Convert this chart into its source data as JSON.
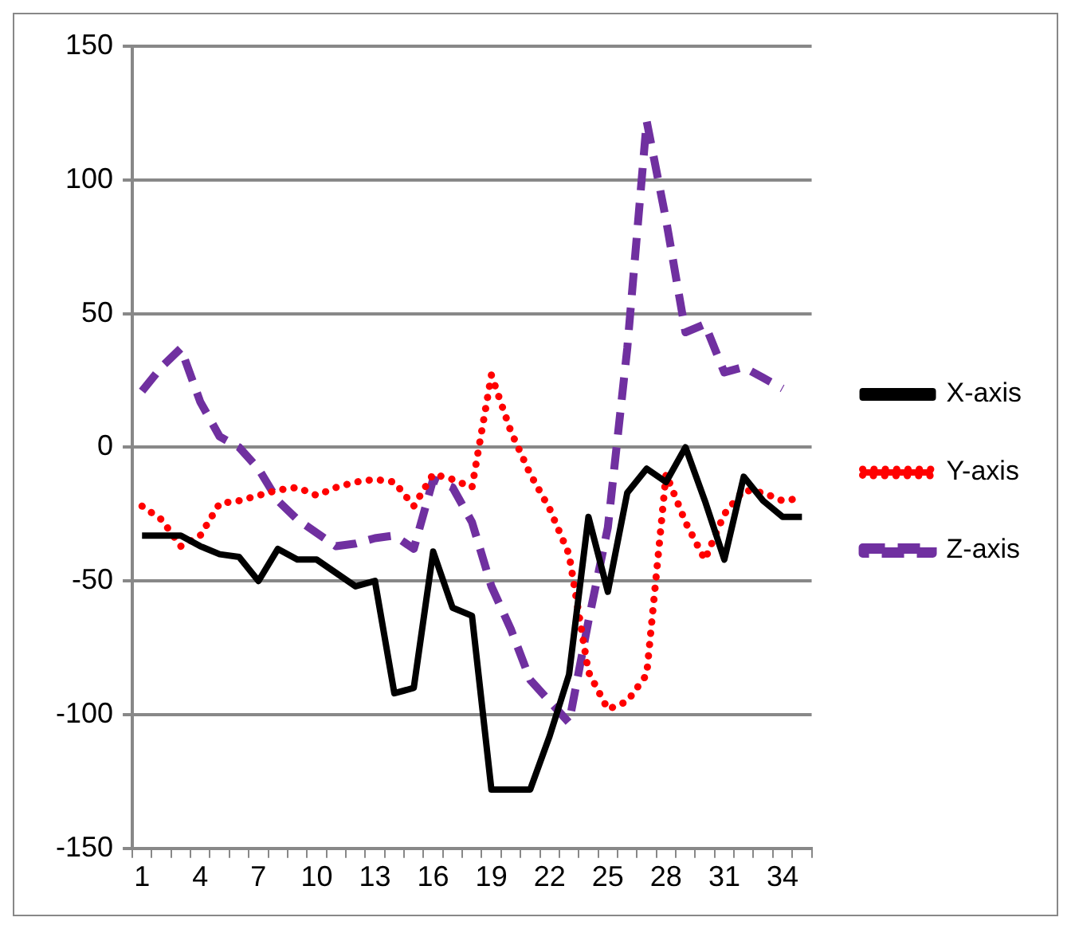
{
  "chart_data": {
    "type": "line",
    "categories": [
      "1",
      null,
      null,
      "4",
      null,
      null,
      "7",
      null,
      null,
      "10",
      null,
      null,
      "13",
      null,
      null,
      "16",
      null,
      null,
      "19",
      null,
      null,
      "22",
      null,
      null,
      "25",
      null,
      null,
      "28",
      null,
      null,
      "31",
      null,
      null,
      "34",
      null
    ],
    "series": [
      {
        "name": "X-axis",
        "color": "#000000",
        "line_style": "solid",
        "values": [
          -33,
          -33,
          -33,
          -37,
          -40,
          -41,
          -50,
          -38,
          -42,
          -42,
          -47,
          -52,
          -50,
          -92,
          -90,
          -39,
          -60,
          -63,
          -128,
          -128,
          -128,
          -108,
          -85,
          -26,
          -54,
          -17,
          -8,
          -13,
          0,
          -20,
          -42,
          -11,
          -20,
          -26,
          -26
        ]
      },
      {
        "name": "Y-axis",
        "color": "#ff0000",
        "line_style": "dotted",
        "values": [
          -22,
          -27,
          -37,
          -33,
          -21,
          -20,
          -18,
          -16,
          -15,
          -18,
          -15,
          -13,
          -12,
          -13,
          -22,
          -10,
          -12,
          -15,
          27,
          6,
          -10,
          -23,
          -40,
          -84,
          -98,
          -95,
          -85,
          -10,
          -28,
          -42,
          -25,
          -16,
          -17,
          -20,
          -19
        ]
      },
      {
        "name": "Z-axis",
        "color": "#7030a0",
        "line_style": "dashed",
        "values": [
          21,
          30,
          37,
          17,
          4,
          0,
          -8,
          -20,
          -27,
          -32,
          -37,
          -36,
          -34,
          -33,
          -38,
          -12,
          -15,
          -28,
          -52,
          -68,
          -87,
          -95,
          -103,
          -65,
          -30,
          37,
          122,
          85,
          43,
          46,
          28,
          30,
          26,
          22,
          null
        ]
      }
    ],
    "ylim": [
      -150,
      150
    ],
    "yticks": [
      -150,
      -100,
      -50,
      0,
      50,
      100,
      150
    ],
    "grid": "y",
    "legend": "right",
    "marker": "none"
  }
}
